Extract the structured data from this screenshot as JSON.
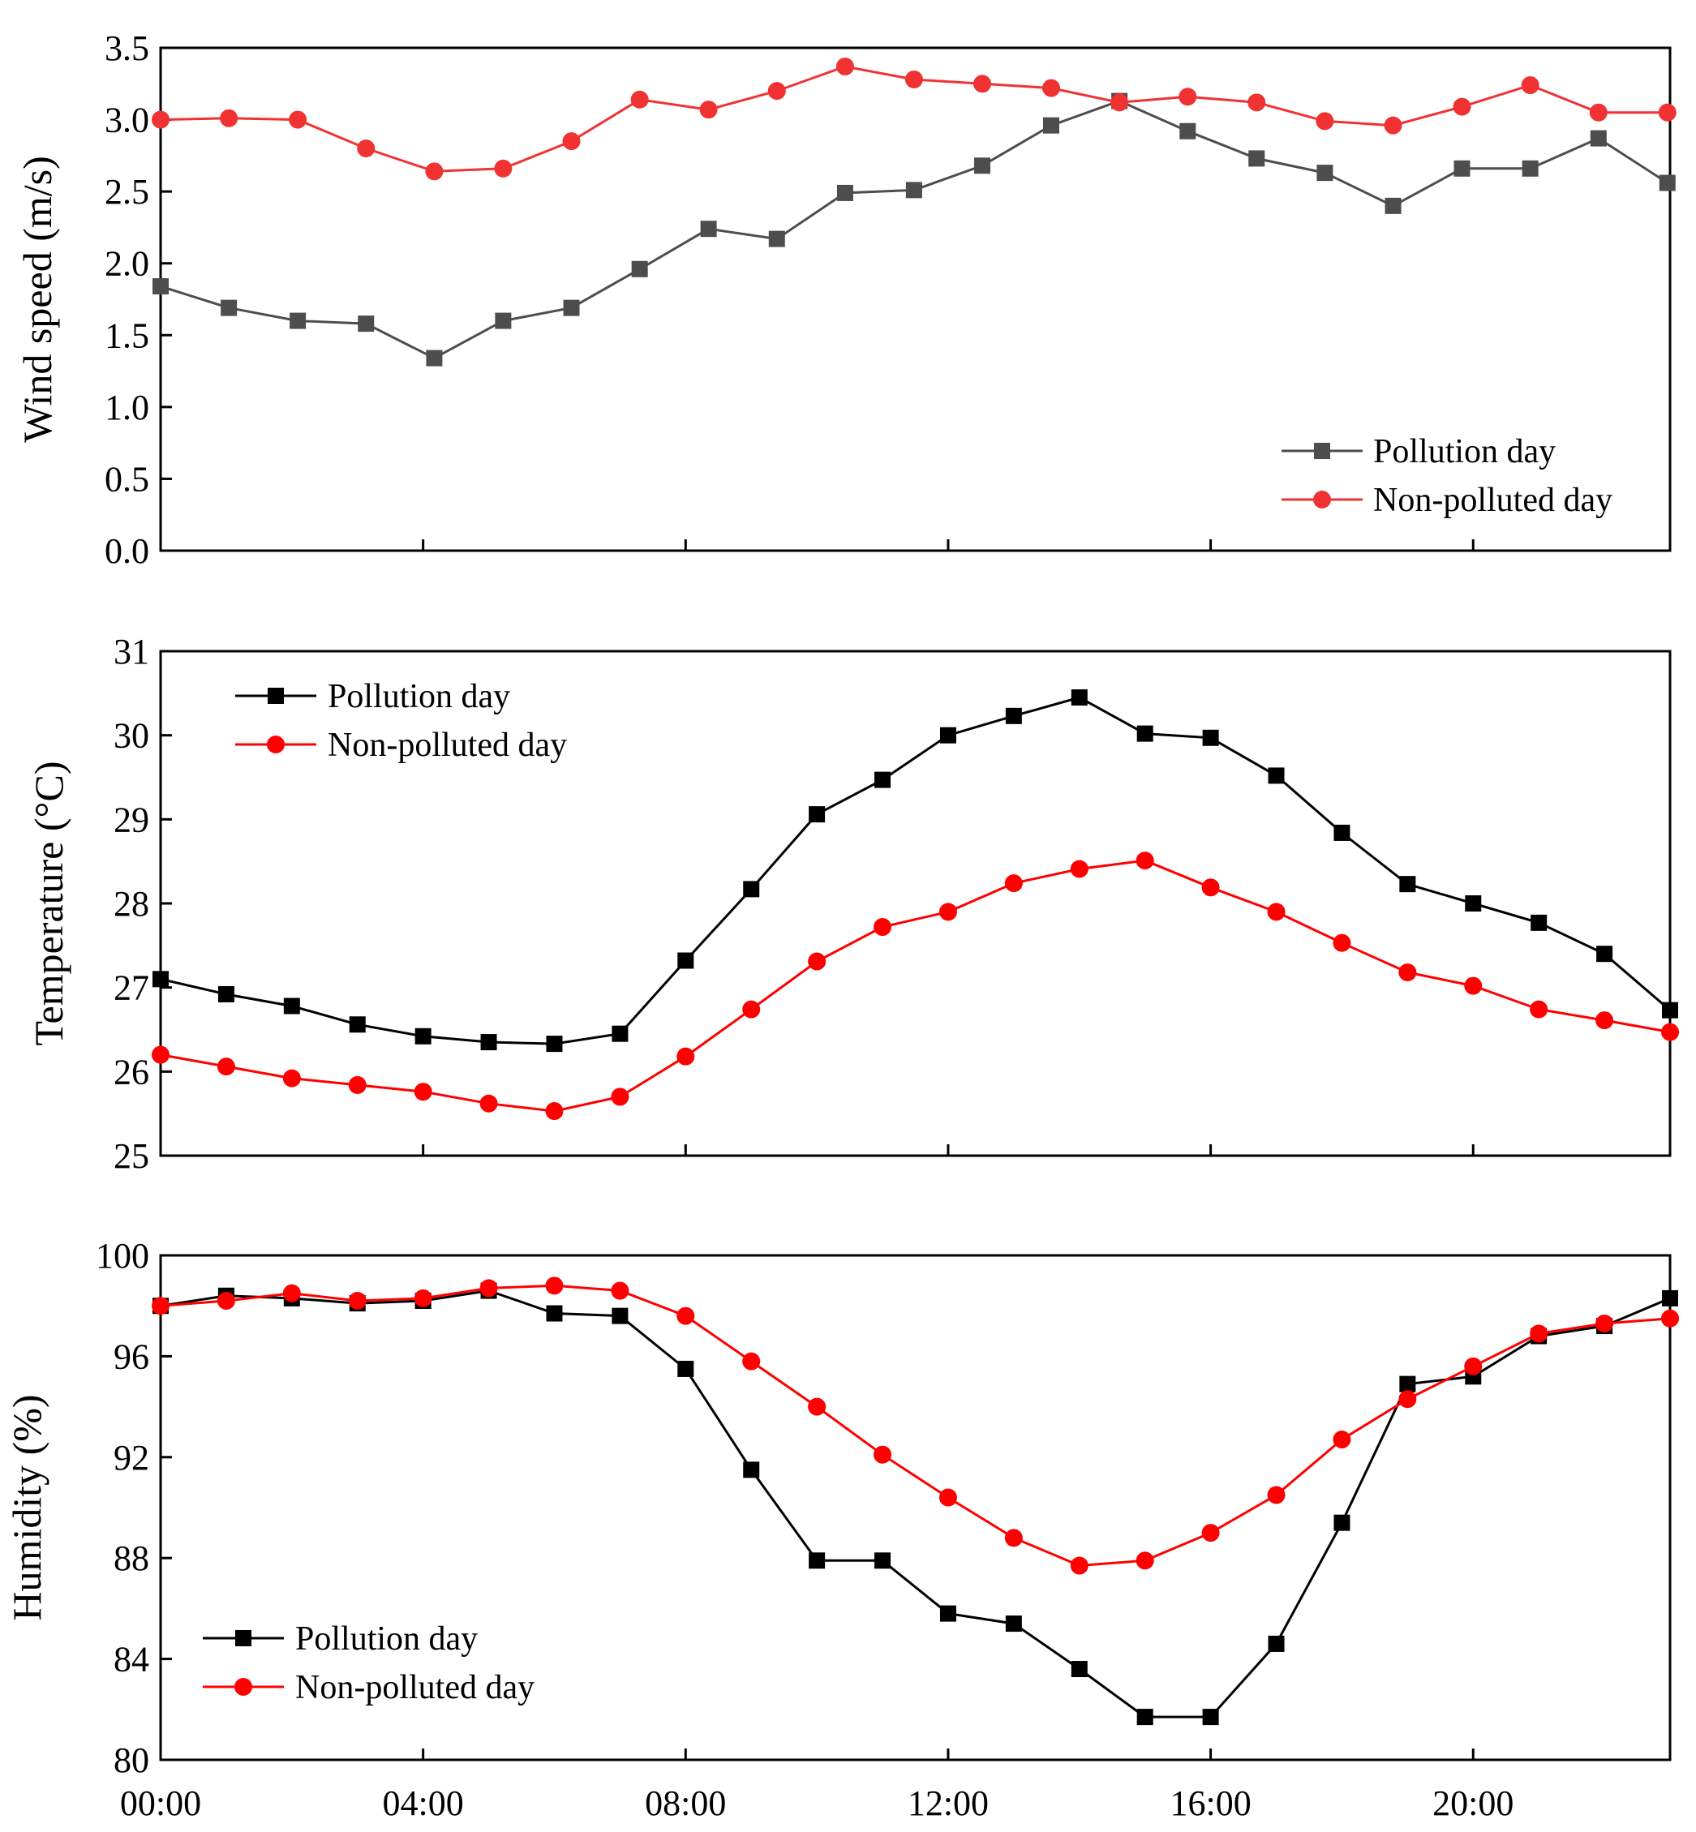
{
  "chart_data": [
    {
      "type": "line",
      "ylabel": "Wind speed (m/s)",
      "xlabel": "",
      "ylim": [
        0,
        3.5
      ],
      "yticks": [
        "0.0",
        "0.5",
        "1.0",
        "1.5",
        "2.0",
        "2.5",
        "3.0",
        "3.5"
      ],
      "legend_position": "bottom-right",
      "series": [
        {
          "name": "Pollution day",
          "color": "#4d4d4d",
          "marker": "square",
          "x": [
            0,
            1.04,
            2.09,
            3.13,
            4.17,
            5.22,
            6.26,
            7.3,
            8.35,
            9.39,
            10.43,
            11.48,
            12.52,
            13.57,
            14.61,
            15.65,
            16.7,
            17.74,
            18.78,
            19.83,
            20.87,
            21.91,
            22.96
          ],
          "values": [
            1.84,
            1.69,
            1.6,
            1.58,
            1.34,
            1.6,
            1.69,
            1.96,
            2.24,
            2.17,
            2.49,
            2.51,
            2.68,
            2.96,
            3.13,
            2.92,
            2.73,
            2.63,
            2.4,
            2.66,
            2.66,
            2.87,
            2.56
          ]
        },
        {
          "name": "Non-polluted day",
          "color": "#f03232",
          "marker": "circle",
          "x": [
            0,
            1.04,
            2.09,
            3.13,
            4.17,
            5.22,
            6.26,
            7.3,
            8.35,
            9.39,
            10.43,
            11.48,
            12.52,
            13.57,
            14.61,
            15.65,
            16.7,
            17.74,
            18.78,
            19.83,
            20.87,
            21.91,
            22.96
          ],
          "values": [
            3.0,
            3.01,
            3.0,
            2.8,
            2.64,
            2.66,
            2.85,
            3.14,
            3.07,
            3.2,
            3.37,
            3.28,
            3.25,
            3.22,
            3.12,
            3.16,
            3.12,
            2.99,
            2.96,
            3.09,
            3.24,
            3.05,
            3.05
          ]
        }
      ]
    },
    {
      "type": "line",
      "ylabel": "Temperature (°C)",
      "xlabel": "",
      "ylim": [
        25,
        31
      ],
      "yticks": [
        "25",
        "26",
        "27",
        "28",
        "29",
        "30",
        "31"
      ],
      "legend_position": "top-left",
      "series": [
        {
          "name": "Pollution day",
          "color": "#000000",
          "marker": "square",
          "x": [
            0,
            1,
            2,
            3,
            4,
            5,
            6,
            7,
            8,
            9,
            10,
            11,
            12,
            13,
            14,
            15,
            16,
            17,
            18,
            19,
            20,
            21,
            22,
            23
          ],
          "values": [
            27.1,
            26.92,
            26.78,
            26.56,
            26.42,
            26.35,
            26.33,
            26.45,
            27.32,
            28.17,
            29.06,
            29.47,
            30.0,
            30.23,
            30.45,
            30.02,
            29.97,
            29.52,
            28.84,
            28.23,
            28.0,
            27.77,
            27.4,
            26.73
          ]
        },
        {
          "name": "Non-polluted day",
          "color": "#ff0000",
          "marker": "circle",
          "x": [
            0,
            1,
            2,
            3,
            4,
            5,
            6,
            7,
            8,
            9,
            10,
            11,
            12,
            13,
            14,
            15,
            16,
            17,
            18,
            19,
            20,
            21,
            22,
            23
          ],
          "values": [
            26.2,
            26.06,
            25.92,
            25.84,
            25.76,
            25.62,
            25.53,
            25.7,
            26.18,
            26.74,
            27.31,
            27.72,
            27.9,
            28.24,
            28.41,
            28.51,
            28.19,
            27.9,
            27.53,
            27.18,
            27.02,
            26.74,
            26.61,
            26.47
          ]
        }
      ]
    },
    {
      "type": "line",
      "ylabel": "Humidity (%)",
      "xlabel": "",
      "ylim": [
        80,
        100
      ],
      "yticks": [
        "80",
        "84",
        "88",
        "92",
        "96",
        "100"
      ],
      "xticks": [
        "00:00",
        "04:00",
        "08:00",
        "12:00",
        "16:00",
        "20:00"
      ],
      "legend_position": "bottom-left",
      "series": [
        {
          "name": "Pollution day",
          "color": "#000000",
          "marker": "square",
          "x": [
            0,
            1,
            2,
            3,
            4,
            5,
            6,
            7,
            8,
            9,
            10,
            11,
            12,
            13,
            14,
            15,
            16,
            17,
            18,
            19,
            20,
            21,
            22,
            23
          ],
          "values": [
            98.0,
            98.4,
            98.3,
            98.1,
            98.2,
            98.6,
            97.7,
            97.6,
            95.5,
            91.5,
            87.9,
            87.9,
            85.8,
            85.4,
            83.6,
            81.7,
            81.7,
            84.6,
            89.4,
            94.9,
            95.2,
            96.8,
            97.2,
            98.3
          ]
        },
        {
          "name": "Non-polluted day",
          "color": "#ff0000",
          "marker": "circle",
          "x": [
            0,
            1,
            2,
            3,
            4,
            5,
            6,
            7,
            8,
            9,
            10,
            11,
            12,
            13,
            14,
            15,
            16,
            17,
            18,
            19,
            20,
            21,
            22,
            23
          ],
          "values": [
            98.0,
            98.2,
            98.5,
            98.2,
            98.3,
            98.7,
            98.8,
            98.6,
            97.6,
            95.8,
            94.0,
            92.1,
            90.4,
            88.8,
            87.7,
            87.9,
            89.0,
            90.5,
            92.7,
            94.3,
            95.6,
            96.9,
            97.3,
            97.5
          ]
        }
      ]
    }
  ]
}
